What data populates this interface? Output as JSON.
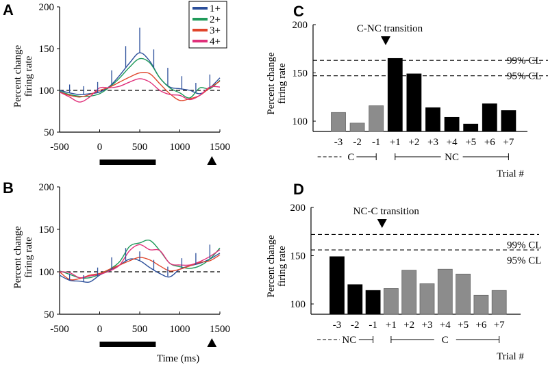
{
  "chart_data": [
    {
      "panel": "A",
      "type": "line",
      "ylabel": [
        "Percent change",
        "firing rate"
      ],
      "xlabel": "",
      "xlim": [
        -500,
        1500
      ],
      "ylim": [
        50,
        200
      ],
      "xticks": [
        "-500",
        "0",
        "500",
        "1000",
        "1500"
      ],
      "yticks": [
        "50",
        "100",
        "150",
        "200"
      ],
      "baseline": 100,
      "stimulus_bar": [
        0,
        700
      ],
      "marker_at": 1400,
      "legend": {
        "placement": "top-right",
        "entries": [
          "1+",
          "2+",
          "3+",
          "4+"
        ]
      },
      "x": [
        -500,
        -375,
        -250,
        -125,
        0,
        125,
        250,
        375,
        500,
        625,
        750,
        875,
        1000,
        1125,
        1250,
        1375,
        1500
      ],
      "series": [
        {
          "name": "1+",
          "color": "#2b4e9a",
          "values": [
            100,
            97,
            95,
            96,
            98,
            105,
            118,
            133,
            145,
            135,
            115,
            104,
            102,
            100,
            96,
            103,
            115
          ]
        },
        {
          "name": "2+",
          "color": "#1f9a5a",
          "values": [
            99,
            95,
            93,
            93,
            96,
            104,
            115,
            128,
            138,
            133,
            115,
            103,
            97,
            91,
            103,
            102,
            112
          ]
        },
        {
          "name": "3+",
          "color": "#e0452b",
          "values": [
            98,
            94,
            92,
            95,
            100,
            104,
            110,
            116,
            121,
            120,
            108,
            96,
            88,
            90,
            94,
            103,
            111
          ]
        },
        {
          "name": "4+",
          "color": "#e0307a",
          "values": [
            98,
            92,
            86,
            92,
            103,
            103,
            105,
            110,
            114,
            110,
            100,
            95,
            94,
            89,
            94,
            104,
            104
          ]
        }
      ],
      "error_bars": {
        "x": [
          -375,
          -200,
          -25,
          150,
          325,
          500,
          675,
          850,
          1025,
          1200,
          1375
        ],
        "top": [
          107,
          105,
          110,
          124,
          153,
          175,
          149,
          127,
          117,
          109,
          119
        ]
      }
    },
    {
      "panel": "B",
      "type": "line",
      "ylabel": [
        "Percent change",
        "firing rate"
      ],
      "xlabel": "Time (ms)",
      "xlim": [
        -500,
        1500
      ],
      "ylim": [
        50,
        200
      ],
      "xticks": [
        "-500",
        "0",
        "500",
        "1000",
        "1500"
      ],
      "yticks": [
        "50",
        "100",
        "150",
        "200"
      ],
      "baseline": 100,
      "stimulus_bar": [
        0,
        700
      ],
      "marker_at": 1400,
      "x": [
        -500,
        -375,
        -250,
        -125,
        0,
        125,
        250,
        375,
        500,
        625,
        750,
        875,
        1000,
        1125,
        1250,
        1375,
        1500
      ],
      "series": [
        {
          "name": "1+",
          "color": "#2b4e9a",
          "values": [
            96,
            90,
            89,
            88,
            96,
            102,
            108,
            115,
            113,
            105,
            98,
            94,
            103,
            107,
            110,
            115,
            122
          ]
        },
        {
          "name": "2+",
          "color": "#1f9a5a",
          "values": [
            101,
            97,
            93,
            93,
            97,
            103,
            112,
            130,
            134,
            137,
            125,
            110,
            106,
            104,
            107,
            115,
            128
          ]
        },
        {
          "name": "3+",
          "color": "#e0452b",
          "values": [
            100,
            91,
            92,
            96,
            98,
            103,
            108,
            113,
            117,
            114,
            107,
            101,
            103,
            107,
            111,
            113,
            120
          ]
        },
        {
          "name": "4+",
          "color": "#e0307a",
          "values": [
            100,
            99,
            93,
            95,
            97,
            101,
            108,
            125,
            132,
            126,
            125,
            110,
            108,
            108,
            112,
            118,
            126
          ]
        }
      ],
      "error_bars": {
        "x": [
          -375,
          -200,
          -25,
          150,
          325,
          500,
          675,
          850,
          1025,
          1200,
          1375
        ],
        "top": [
          98,
          96,
          105,
          117,
          128,
          124,
          114,
          106,
          116,
          122,
          132
        ]
      }
    },
    {
      "panel": "C",
      "type": "bar",
      "ylabel": [
        "Percent change",
        "firing rate"
      ],
      "xlabel": "Trial #",
      "ylim": [
        89,
        200
      ],
      "yticks": [
        "100",
        "150",
        "200"
      ],
      "categories": [
        "-3",
        "-2",
        "-1",
        "+1",
        "+2",
        "+3",
        "+4",
        "+5",
        "+6",
        "+7"
      ],
      "values": [
        109,
        98,
        116,
        165,
        149,
        114,
        104,
        97,
        118,
        111
      ],
      "bar_colors": [
        "#8c8c8c",
        "#8c8c8c",
        "#8c8c8c",
        "#000000",
        "#000000",
        "#000000",
        "#000000",
        "#000000",
        "#000000",
        "#000000"
      ],
      "annotation": "C-NC transition",
      "confidence_lines": [
        {
          "label": "99% CL",
          "value": 163
        },
        {
          "label": "95% CL",
          "value": 147
        }
      ],
      "groups": [
        {
          "label": "C"
        },
        {
          "label": "NC"
        }
      ]
    },
    {
      "panel": "D",
      "type": "bar",
      "ylabel": [
        "Percent change",
        "firing rate"
      ],
      "xlabel": "Trial #",
      "ylim": [
        89,
        200
      ],
      "yticks": [
        "100",
        "150",
        "200"
      ],
      "categories": [
        "-3",
        "-2",
        "-1",
        "+1",
        "+2",
        "+3",
        "+4",
        "+5",
        "+6",
        "+7"
      ],
      "values": [
        149,
        120,
        114,
        116,
        135,
        121,
        136,
        131,
        109,
        114
      ],
      "bar_colors": [
        "#000000",
        "#000000",
        "#000000",
        "#8c8c8c",
        "#8c8c8c",
        "#8c8c8c",
        "#8c8c8c",
        "#8c8c8c",
        "#8c8c8c",
        "#8c8c8c"
      ],
      "annotation": "NC-C transition",
      "confidence_lines": [
        {
          "label": "99% CL",
          "value": 172
        },
        {
          "label": "95% CL",
          "value": 156
        }
      ],
      "groups": [
        {
          "label": "NC"
        },
        {
          "label": "C"
        }
      ]
    }
  ]
}
